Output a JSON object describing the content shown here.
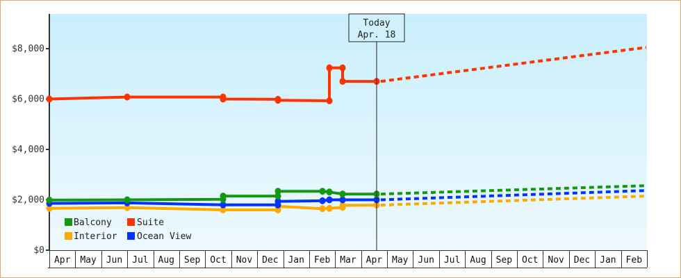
{
  "chart_data": {
    "type": "line",
    "title": "",
    "xlabel": "",
    "ylabel": "",
    "ylim": [
      0,
      9300
    ],
    "y_ticks": [
      "$0",
      "$2,000",
      "$4,000",
      "$6,000",
      "$8,000"
    ],
    "y_tick_values": [
      0,
      2000,
      4000,
      6000,
      8000
    ],
    "x_ticks": [
      "Apr",
      "May",
      "Jun",
      "Jul",
      "Aug",
      "Sep",
      "Oct",
      "Nov",
      "Dec",
      "Jan",
      "Feb",
      "Mar",
      "Apr",
      "May",
      "Jun",
      "Jul",
      "Aug",
      "Sep",
      "Oct",
      "Nov",
      "Dec",
      "Jan",
      "Feb"
    ],
    "today_marker": {
      "line1": "Today",
      "line2": "Apr. 18"
    },
    "grid": false,
    "legend_position": "lower-left",
    "legend": [
      "Balcony",
      "Suite",
      "Interior",
      "Ocean View"
    ],
    "series": [
      {
        "name": "Suite",
        "color": "#ff3300",
        "history": [
          {
            "month": "Apr",
            "value": 6000
          },
          {
            "month": "Jul",
            "value": 6080
          },
          {
            "month": "Oct",
            "value": 6080
          },
          {
            "month": "Oct",
            "value": 6000
          },
          {
            "month": "Dec",
            "value": 5990
          },
          {
            "month": "Dec",
            "value": 5950
          },
          {
            "month": "Feb",
            "value": 5930
          },
          {
            "month": "Feb",
            "value": 7240
          },
          {
            "month": "Mar",
            "value": 7240
          },
          {
            "month": "Mar",
            "value": 6700
          },
          {
            "month": "Apr",
            "value": 6700
          }
        ],
        "forecast": [
          {
            "month": "Apr",
            "value": 6700
          },
          {
            "month": "Feb",
            "value": 8050
          }
        ]
      },
      {
        "name": "Balcony",
        "color": "#119911",
        "history": [
          {
            "month": "Apr",
            "value": 1990
          },
          {
            "month": "Jul",
            "value": 2000
          },
          {
            "month": "Oct",
            "value": 2020
          },
          {
            "month": "Oct",
            "value": 2150
          },
          {
            "month": "Dec",
            "value": 2150
          },
          {
            "month": "Dec",
            "value": 2340
          },
          {
            "month": "Feb",
            "value": 2340
          },
          {
            "month": "Feb",
            "value": 2310
          },
          {
            "month": "Mar",
            "value": 2230
          },
          {
            "month": "Apr",
            "value": 2230
          }
        ],
        "forecast": [
          {
            "month": "Apr",
            "value": 2230
          },
          {
            "month": "Feb",
            "value": 2560
          }
        ]
      },
      {
        "name": "Ocean View",
        "color": "#0033ff",
        "history": [
          {
            "month": "Apr",
            "value": 1860
          },
          {
            "month": "Jul",
            "value": 1880
          },
          {
            "month": "Oct",
            "value": 1800
          },
          {
            "month": "Dec",
            "value": 1800
          },
          {
            "month": "Dec",
            "value": 1940
          },
          {
            "month": "Feb",
            "value": 1960
          },
          {
            "month": "Feb",
            "value": 2000
          },
          {
            "month": "Mar",
            "value": 2000
          },
          {
            "month": "Apr",
            "value": 2000
          }
        ],
        "forecast": [
          {
            "month": "Apr",
            "value": 2000
          },
          {
            "month": "Feb",
            "value": 2370
          }
        ]
      },
      {
        "name": "Interior",
        "color": "#ffaa00",
        "history": [
          {
            "month": "Apr",
            "value": 1660
          },
          {
            "month": "Jul",
            "value": 1690
          },
          {
            "month": "Oct",
            "value": 1600
          },
          {
            "month": "Dec",
            "value": 1600
          },
          {
            "month": "Dec",
            "value": 1740
          },
          {
            "month": "Feb",
            "value": 1650
          },
          {
            "month": "Feb",
            "value": 1660
          },
          {
            "month": "Mar",
            "value": 1700
          },
          {
            "month": "Mar",
            "value": 1780
          },
          {
            "month": "Apr",
            "value": 1790
          }
        ],
        "forecast": [
          {
            "month": "Apr",
            "value": 1790
          },
          {
            "month": "Feb",
            "value": 2150
          }
        ]
      }
    ]
  },
  "ui": {
    "plot_bg_top": "#c9effc",
    "plot_bg_bottom": "#eef9fe",
    "frame_border": "#e8a868"
  }
}
